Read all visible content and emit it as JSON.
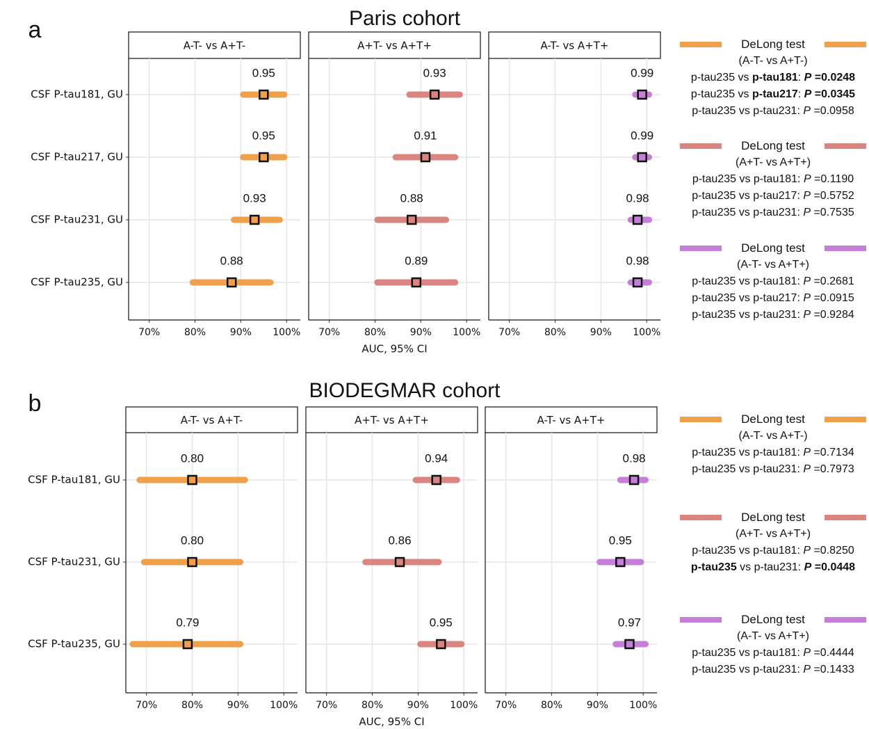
{
  "chart_data": [
    {
      "type": "forest",
      "label": "a",
      "title": "Paris cohort",
      "xlabel": "AUC, 95% CI",
      "categories": [
        "CSF P-tau181, GU",
        "CSF P-tau217, GU",
        "CSF P-tau231, GU",
        "CSF P-tau235, GU"
      ],
      "xlim": [
        65.5,
        103
      ],
      "grid": true,
      "xticks": [
        {
          "value": 70,
          "label": "70%"
        },
        {
          "value": 80,
          "label": "80%"
        },
        {
          "value": 90,
          "label": "90%"
        },
        {
          "value": 100,
          "label": "100%"
        }
      ],
      "facets": [
        {
          "title": "A-T- vs A+T-",
          "color": "#f0a04b",
          "values": [
            95,
            95,
            93,
            88
          ],
          "value_labels": [
            "0.95",
            "0.95",
            "0.93",
            "0.88"
          ],
          "ci_low": [
            90.5,
            90.5,
            88.5,
            79.5
          ],
          "ci_high": [
            99.5,
            99.5,
            98.5,
            96.5
          ]
        },
        {
          "title": "A+T- vs A+T+",
          "color": "#da8580",
          "values": [
            93,
            91,
            88,
            89
          ],
          "value_labels": [
            "0.93",
            "0.91",
            "0.88",
            "0.89"
          ],
          "ci_low": [
            87.5,
            84.5,
            80.5,
            80.5
          ],
          "ci_high": [
            98.5,
            97.5,
            95.5,
            97.5
          ]
        },
        {
          "title": "A-T- vs A+T+",
          "color": "#c67fd8",
          "values": [
            99,
            99,
            98,
            98
          ],
          "value_labels": [
            "0.99",
            "0.99",
            "0.98",
            "0.98"
          ],
          "ci_low": [
            97.5,
            97.5,
            96.5,
            96.5
          ],
          "ci_high": [
            100.5,
            100.5,
            100.5,
            100.5
          ]
        }
      ],
      "tests": [
        {
          "title": "DeLong test",
          "subtitle": "(A-T- vs A+T-)",
          "rows": [
            [
              "p-tau235 vs ",
              {
                "text": "p-tau181",
                "bold": true
              },
              ": ",
              {
                "text": "P",
                "bold": true,
                "italic": true
              },
              {
                "text": " =0.0248",
                "bold": true
              }
            ],
            [
              "p-tau235 vs ",
              {
                "text": "p-tau217",
                "bold": true
              },
              ": ",
              {
                "text": "P",
                "bold": true,
                "italic": true
              },
              {
                "text": " =0.0345",
                "bold": true
              }
            ],
            [
              "p-tau235 vs p-tau231: ",
              {
                "text": "P",
                "italic": true
              },
              " =0.0958"
            ]
          ]
        },
        {
          "title": "DeLong test",
          "subtitle": "(A+T- vs A+T+)",
          "rows": [
            [
              "p-tau235 vs p-tau181: ",
              {
                "text": "P",
                "italic": true
              },
              " =0.1190"
            ],
            [
              "p-tau235 vs p-tau217: ",
              {
                "text": "P",
                "italic": true
              },
              " =0.5752"
            ],
            [
              "p-tau235 vs p-tau231: ",
              {
                "text": "P",
                "italic": true
              },
              " =0.7535"
            ]
          ]
        },
        {
          "title": "DeLong test",
          "subtitle": "(A-T- vs A+T+)",
          "rows": [
            [
              "p-tau235 vs p-tau181: ",
              {
                "text": "P",
                "italic": true
              },
              " =0.2681"
            ],
            [
              "p-tau235 vs p-tau217: ",
              {
                "text": "P",
                "italic": true
              },
              " =0.0915"
            ],
            [
              "p-tau235 vs p-tau231: ",
              {
                "text": "P",
                "italic": true
              },
              " =0.9284"
            ]
          ]
        }
      ]
    },
    {
      "type": "forest",
      "label": "b",
      "title": "BIODEGMAR cohort",
      "xlabel": "AUC, 95% CI",
      "categories": [
        "CSF P-tau181, GU",
        "CSF P-tau231, GU",
        "CSF P-tau235, GU"
      ],
      "xlim": [
        65.5,
        103
      ],
      "grid": true,
      "xticks": [
        {
          "value": 70,
          "label": "70%"
        },
        {
          "value": 80,
          "label": "80%"
        },
        {
          "value": 90,
          "label": "90%"
        },
        {
          "value": 100,
          "label": "100%"
        }
      ],
      "facets": [
        {
          "title": "A-T- vs A+T-",
          "color": "#f0a04b",
          "values": [
            80,
            80,
            79
          ],
          "value_labels": [
            "0.80",
            "0.80",
            "0.79"
          ],
          "ci_low": [
            68.5,
            69.5,
            67
          ],
          "ci_high": [
            91.5,
            90.5,
            90.5
          ]
        },
        {
          "title": "A+T- vs A+T+",
          "color": "#da8580",
          "values": [
            94,
            86,
            95
          ],
          "value_labels": [
            "0.94",
            "0.86",
            "0.95"
          ],
          "ci_low": [
            89.5,
            78.5,
            90.5
          ],
          "ci_high": [
            98.5,
            94.5,
            99.5
          ]
        },
        {
          "title": "A-T- vs A+T+",
          "color": "#c67fd8",
          "values": [
            98,
            95,
            97
          ],
          "value_labels": [
            "0.98",
            "0.95",
            "0.97"
          ],
          "ci_low": [
            95,
            90.5,
            94
          ],
          "ci_high": [
            100.5,
            99.5,
            100.5
          ]
        }
      ],
      "tests": [
        {
          "title": "DeLong test",
          "subtitle": "(A-T- vs A+T-)",
          "rows": [
            [
              "p-tau235 vs p-tau181: ",
              {
                "text": "P",
                "italic": true
              },
              " =0.7134"
            ],
            [
              "p-tau235 vs p-tau231: ",
              {
                "text": "P",
                "italic": true
              },
              " =0.7973"
            ]
          ]
        },
        {
          "title": "DeLong test",
          "subtitle": "(A+T- vs A+T+)",
          "rows": [
            [
              "p-tau235 vs p-tau181: ",
              {
                "text": "P",
                "italic": true
              },
              " =0.8250"
            ],
            [
              {
                "text": "p-tau235",
                "bold": true
              },
              " vs p-tau231: ",
              {
                "text": "P",
                "bold": true,
                "italic": true
              },
              {
                "text": " =0.0448",
                "bold": true
              }
            ]
          ]
        },
        {
          "title": "DeLong test",
          "subtitle": "(A-T- vs A+T+)",
          "rows": [
            [
              "p-tau235 vs p-tau181: ",
              {
                "text": "P",
                "italic": true
              },
              " =0.4444"
            ],
            [
              "p-tau235 vs p-tau231: ",
              {
                "text": "P",
                "italic": true
              },
              " =0.1433"
            ]
          ]
        }
      ]
    }
  ]
}
